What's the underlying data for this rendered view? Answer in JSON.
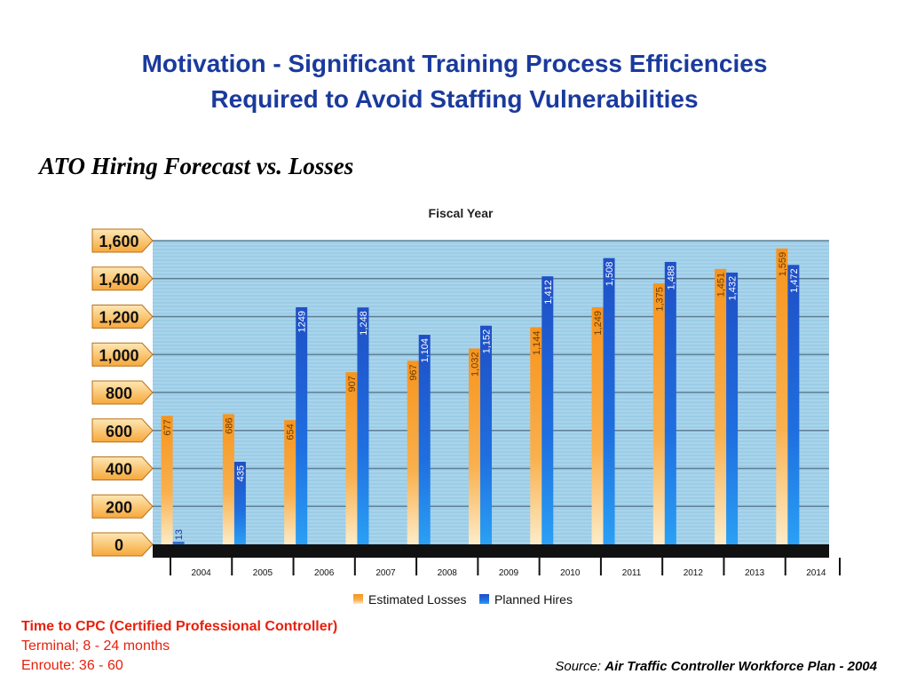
{
  "slide": {
    "title_line1": "Motivation - Significant Training Process  Efficiencies",
    "title_line2": "Required to Avoid Staffing Vulnerabilities",
    "subtitle": "ATO Hiring Forecast vs. Losses"
  },
  "notes": {
    "heading": "Time to CPC (Certified Professional Controller)",
    "line1": "Terminal; 8 - 24 months",
    "line2": "Enroute: 36 - 60"
  },
  "source": {
    "label": "Source:",
    "publication": "Air Traffic Controller Workforce Plan - 2004"
  },
  "colors": {
    "title": "#1a3a9c",
    "notes": "#e8200c",
    "losses": "#f7941d",
    "hires": "#1f5fd6",
    "plot_bg": "#a8d4ec",
    "ytab": "#f9b24a"
  },
  "chart_data": {
    "type": "bar",
    "title": "Fiscal Year",
    "categories": [
      "2004",
      "2005",
      "2006",
      "2007",
      "2008",
      "2009",
      "2010",
      "2011",
      "2012",
      "2013",
      "2014"
    ],
    "series": [
      {
        "name": "Estimated Losses",
        "values": [
          677,
          686,
          654,
          907,
          967,
          1032,
          1144,
          1249,
          1375,
          1451,
          1559
        ]
      },
      {
        "name": "Planned Hires",
        "values": [
          13,
          435,
          1249,
          1248,
          1104,
          1152,
          1412,
          1508,
          1488,
          1432,
          1472
        ]
      }
    ],
    "value_labels": [
      [
        "677",
        "686",
        "654",
        "907",
        "967",
        "1,032",
        "1,144",
        "1,249",
        "1,375",
        "1,451",
        "1,559"
      ],
      [
        "13",
        "435",
        "1249",
        "1,248",
        "1,104",
        "1,152",
        "1,412",
        "1,508",
        "1,488",
        "1,432",
        "1,472"
      ]
    ],
    "yticks": [
      "0",
      "200",
      "400",
      "600",
      "800",
      "1,000",
      "1,200",
      "1,400",
      "1,600"
    ],
    "ylim": [
      0,
      1600
    ],
    "legend_position": "bottom",
    "grid": true
  }
}
